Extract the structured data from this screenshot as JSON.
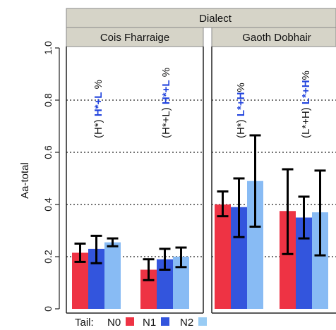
{
  "chart_data": {
    "type": "bar",
    "header_title": "Dialect",
    "ylabel": "Aa-total",
    "ylim": [
      0,
      1.0
    ],
    "yticks": [
      "0",
      "0.2",
      "0.4",
      "0.6",
      "0.8",
      "1.0"
    ],
    "gridlines": [
      0.2,
      0.4,
      0.6,
      0.8
    ],
    "panels": [
      {
        "label": "Cois Fharraige",
        "groups": [
          {
            "label_prefix": "(H*)",
            "label_bold": "H*+L",
            "label_suffix": " %",
            "bars": [
              {
                "value": 0.215,
                "low": 0.18,
                "high": 0.25
              },
              {
                "value": 0.23,
                "low": 0.175,
                "high": 0.28
              },
              {
                "value": 0.255,
                "low": 0.24,
                "high": 0.27
              }
            ]
          },
          {
            "label_prefix": "(H*+L)",
            "label_bold": "H*+L",
            "label_suffix": " %",
            "bars": [
              {
                "value": 0.15,
                "low": 0.11,
                "high": 0.19
              },
              {
                "value": 0.19,
                "low": 0.15,
                "high": 0.23
              },
              {
                "value": 0.2,
                "low": 0.16,
                "high": 0.235
              }
            ]
          }
        ]
      },
      {
        "label": "Gaoth Dobhair",
        "groups": [
          {
            "label_prefix": "(H*)",
            "label_bold": "L*+H",
            "label_suffix": "%",
            "bars": [
              {
                "value": 0.4,
                "low": 0.355,
                "high": 0.45
              },
              {
                "value": 0.39,
                "low": 0.275,
                "high": 0.5
              },
              {
                "value": 0.49,
                "low": 0.315,
                "high": 0.665
              }
            ]
          },
          {
            "label_prefix": "(L*+H)",
            "label_bold": "L*+H",
            "label_suffix": "%",
            "bars": [
              {
                "value": 0.375,
                "low": 0.21,
                "high": 0.535
              },
              {
                "value": 0.35,
                "low": 0.27,
                "high": 0.43
              },
              {
                "value": 0.37,
                "low": 0.205,
                "high": 0.53
              }
            ]
          }
        ]
      }
    ],
    "legend": {
      "title": "Tail:",
      "placement": "bottom",
      "entries": [
        {
          "name": "N0",
          "color": "#ee3344"
        },
        {
          "name": "N1",
          "color": "#3355dd"
        },
        {
          "name": "N2",
          "color": "#99ccf4"
        }
      ]
    },
    "colors": {
      "series": [
        "#ee3344",
        "#3355dd",
        "#88bbf4"
      ],
      "strip_bg": "#d6d4c8",
      "bold_label": "#2244dd"
    }
  }
}
